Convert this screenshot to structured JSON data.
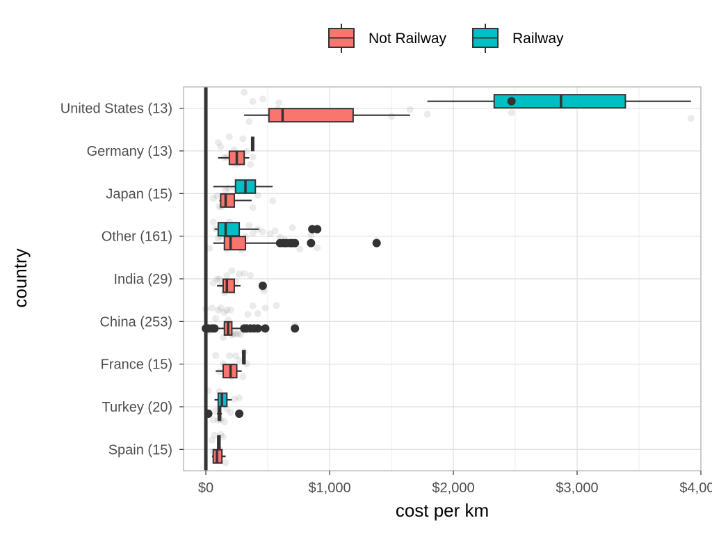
{
  "chart_data": {
    "type": "boxplot",
    "xlabel": "cost per km",
    "ylabel": "country",
    "xlim": [
      -180,
      4000
    ],
    "x_ticks": [
      0,
      1000,
      2000,
      3000,
      4000
    ],
    "x_tick_labels": [
      "$0",
      "$1,000",
      "$2,000",
      "$3,000",
      "$4,000"
    ],
    "vline_x": 0,
    "grid": true,
    "legend_position": "top",
    "colors": {
      "Not Railway": "#F8766D",
      "Railway": "#00BFC4"
    },
    "legend": [
      {
        "label": "Not Railway",
        "color": "#F8766D"
      },
      {
        "label": "Railway",
        "color": "#00BFC4"
      }
    ],
    "categories": [
      "United States (13)",
      "Germany (13)",
      "Japan (15)",
      "Other (161)",
      "India (29)",
      "China (253)",
      "France (15)",
      "Turkey (20)",
      "Spain (15)"
    ],
    "boxes": [
      {
        "category": "United States (13)",
        "group": "Railway",
        "whisker_low": 1790,
        "q1": 2330,
        "median": 2870,
        "q3": 3390,
        "whisker_high": 3920,
        "outliers": [
          2470
        ]
      },
      {
        "category": "United States (13)",
        "group": "Not Railway",
        "whisker_low": 310,
        "q1": 510,
        "median": 620,
        "q3": 1190,
        "whisker_high": 1650,
        "outliers": []
      },
      {
        "category": "Germany (13)",
        "group": "Railway",
        "whisker_low": 365,
        "q1": 370,
        "median": 375,
        "q3": 380,
        "whisker_high": 385,
        "outliers": []
      },
      {
        "category": "Germany (13)",
        "group": "Not Railway",
        "whisker_low": 100,
        "q1": 190,
        "median": 250,
        "q3": 310,
        "whisker_high": 350,
        "outliers": []
      },
      {
        "category": "Japan (15)",
        "group": "Railway",
        "whisker_low": 60,
        "q1": 240,
        "median": 320,
        "q3": 400,
        "whisker_high": 540,
        "outliers": []
      },
      {
        "category": "Japan (15)",
        "group": "Not Railway",
        "whisker_low": 110,
        "q1": 120,
        "median": 160,
        "q3": 230,
        "whisker_high": 370,
        "outliers": []
      },
      {
        "category": "Other (161)",
        "group": "Railway",
        "whisker_low": 70,
        "q1": 100,
        "median": 160,
        "q3": 270,
        "whisker_high": 430,
        "outliers": [
          860,
          900
        ]
      },
      {
        "category": "Other (161)",
        "group": "Not Railway",
        "whisker_low": 60,
        "q1": 150,
        "median": 200,
        "q3": 320,
        "whisker_high": 590,
        "outliers": [
          600,
          630,
          650,
          680,
          700,
          720,
          850,
          1380
        ]
      },
      {
        "category": "India (29)",
        "group": "Not Railway",
        "whisker_low": 90,
        "q1": 140,
        "median": 170,
        "q3": 230,
        "whisker_high": 280,
        "outliers": [
          460
        ]
      },
      {
        "category": "China (253)",
        "group": "Not Railway",
        "whisker_low": 30,
        "q1": 150,
        "median": 180,
        "q3": 210,
        "whisker_high": 300,
        "outliers": [
          0,
          20,
          50,
          70,
          310,
          330,
          360,
          390,
          420,
          480,
          720
        ]
      },
      {
        "category": "France (15)",
        "group": "Railway",
        "whisker_low": 295,
        "q1": 300,
        "median": 302,
        "q3": 305,
        "whisker_high": 310,
        "outliers": []
      },
      {
        "category": "France (15)",
        "group": "Not Railway",
        "whisker_low": 80,
        "q1": 140,
        "median": 200,
        "q3": 250,
        "whisker_high": 290,
        "outliers": []
      },
      {
        "category": "Turkey (20)",
        "group": "Railway",
        "whisker_low": 70,
        "q1": 100,
        "median": 130,
        "q3": 170,
        "whisker_high": 210,
        "outliers": []
      },
      {
        "category": "Turkey (20)",
        "group": "Not Railway",
        "whisker_low": 90,
        "q1": 100,
        "median": 110,
        "q3": 120,
        "whisker_high": 130,
        "outliers": [
          20,
          270
        ]
      },
      {
        "category": "Spain (15)",
        "group": "Railway",
        "whisker_low": 95,
        "q1": 98,
        "median": 100,
        "q3": 103,
        "whisker_high": 105,
        "outliers": []
      },
      {
        "category": "Spain (15)",
        "group": "Not Railway",
        "whisker_low": 50,
        "q1": 60,
        "median": 90,
        "q3": 130,
        "whisker_high": 160,
        "outliers": []
      }
    ],
    "jitter_points": [
      {
        "category": "United States (13)",
        "values": [
          310,
          350,
          380,
          460,
          530,
          580,
          590,
          730,
          1500,
          1650,
          1790,
          2470,
          3920
        ]
      },
      {
        "category": "Germany (13)",
        "values": [
          100,
          120,
          150,
          170,
          190,
          210,
          230,
          250,
          270,
          300,
          330,
          360,
          380
        ]
      },
      {
        "category": "Japan (15)",
        "values": [
          60,
          90,
          110,
          130,
          160,
          180,
          200,
          230,
          260,
          290,
          320,
          350,
          380,
          420,
          540
        ]
      },
      {
        "category": "Other (161)",
        "values": [
          30,
          60,
          80,
          100,
          120,
          130,
          150,
          170,
          190,
          210,
          230,
          260,
          290,
          320,
          350,
          380,
          420,
          460,
          520,
          560,
          600,
          640,
          700,
          760,
          850,
          900,
          1380
        ]
      },
      {
        "category": "India (29)",
        "values": [
          60,
          90,
          110,
          130,
          150,
          170,
          190,
          210,
          240,
          270,
          310,
          360,
          460,
          470
        ]
      },
      {
        "category": "China (253)",
        "values": [
          0,
          20,
          50,
          80,
          100,
          120,
          140,
          150,
          160,
          170,
          180,
          190,
          200,
          210,
          220,
          240,
          260,
          280,
          310,
          340,
          380,
          420,
          480,
          570,
          720
        ]
      },
      {
        "category": "France (15)",
        "values": [
          80,
          110,
          140,
          160,
          190,
          210,
          240,
          270,
          300,
          310,
          330
        ]
      },
      {
        "category": "Turkey (20)",
        "values": [
          20,
          60,
          80,
          100,
          110,
          120,
          130,
          150,
          170,
          200,
          230,
          270
        ]
      },
      {
        "category": "Spain (15)",
        "values": [
          50,
          60,
          70,
          80,
          90,
          100,
          110,
          120,
          140,
          160
        ]
      }
    ]
  }
}
